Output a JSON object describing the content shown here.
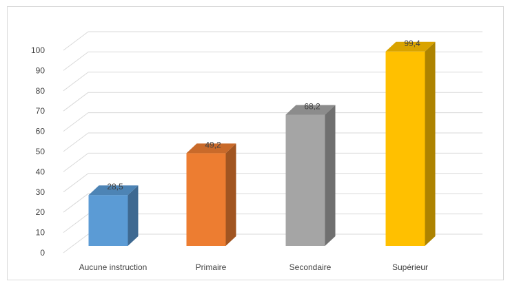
{
  "chart_data": {
    "type": "bar",
    "style": "3d-column",
    "categories": [
      "Aucune instruction",
      "Primaire",
      "Secondaire",
      "Supérieur"
    ],
    "values": [
      28.5,
      49.2,
      68.2,
      99.4
    ],
    "data_labels": [
      "28,5",
      "49,2",
      "68,2",
      "99,4"
    ],
    "colors": [
      "#5B9BD5",
      "#ED7D31",
      "#A5A5A5",
      "#FFC000"
    ],
    "ylim": [
      0,
      100
    ],
    "yticks": [
      "0",
      "10",
      "20",
      "30",
      "40",
      "50",
      "60",
      "70",
      "80",
      "90",
      "100"
    ],
    "title": "",
    "xlabel": "",
    "ylabel": "",
    "grid": true,
    "legend": "none"
  }
}
